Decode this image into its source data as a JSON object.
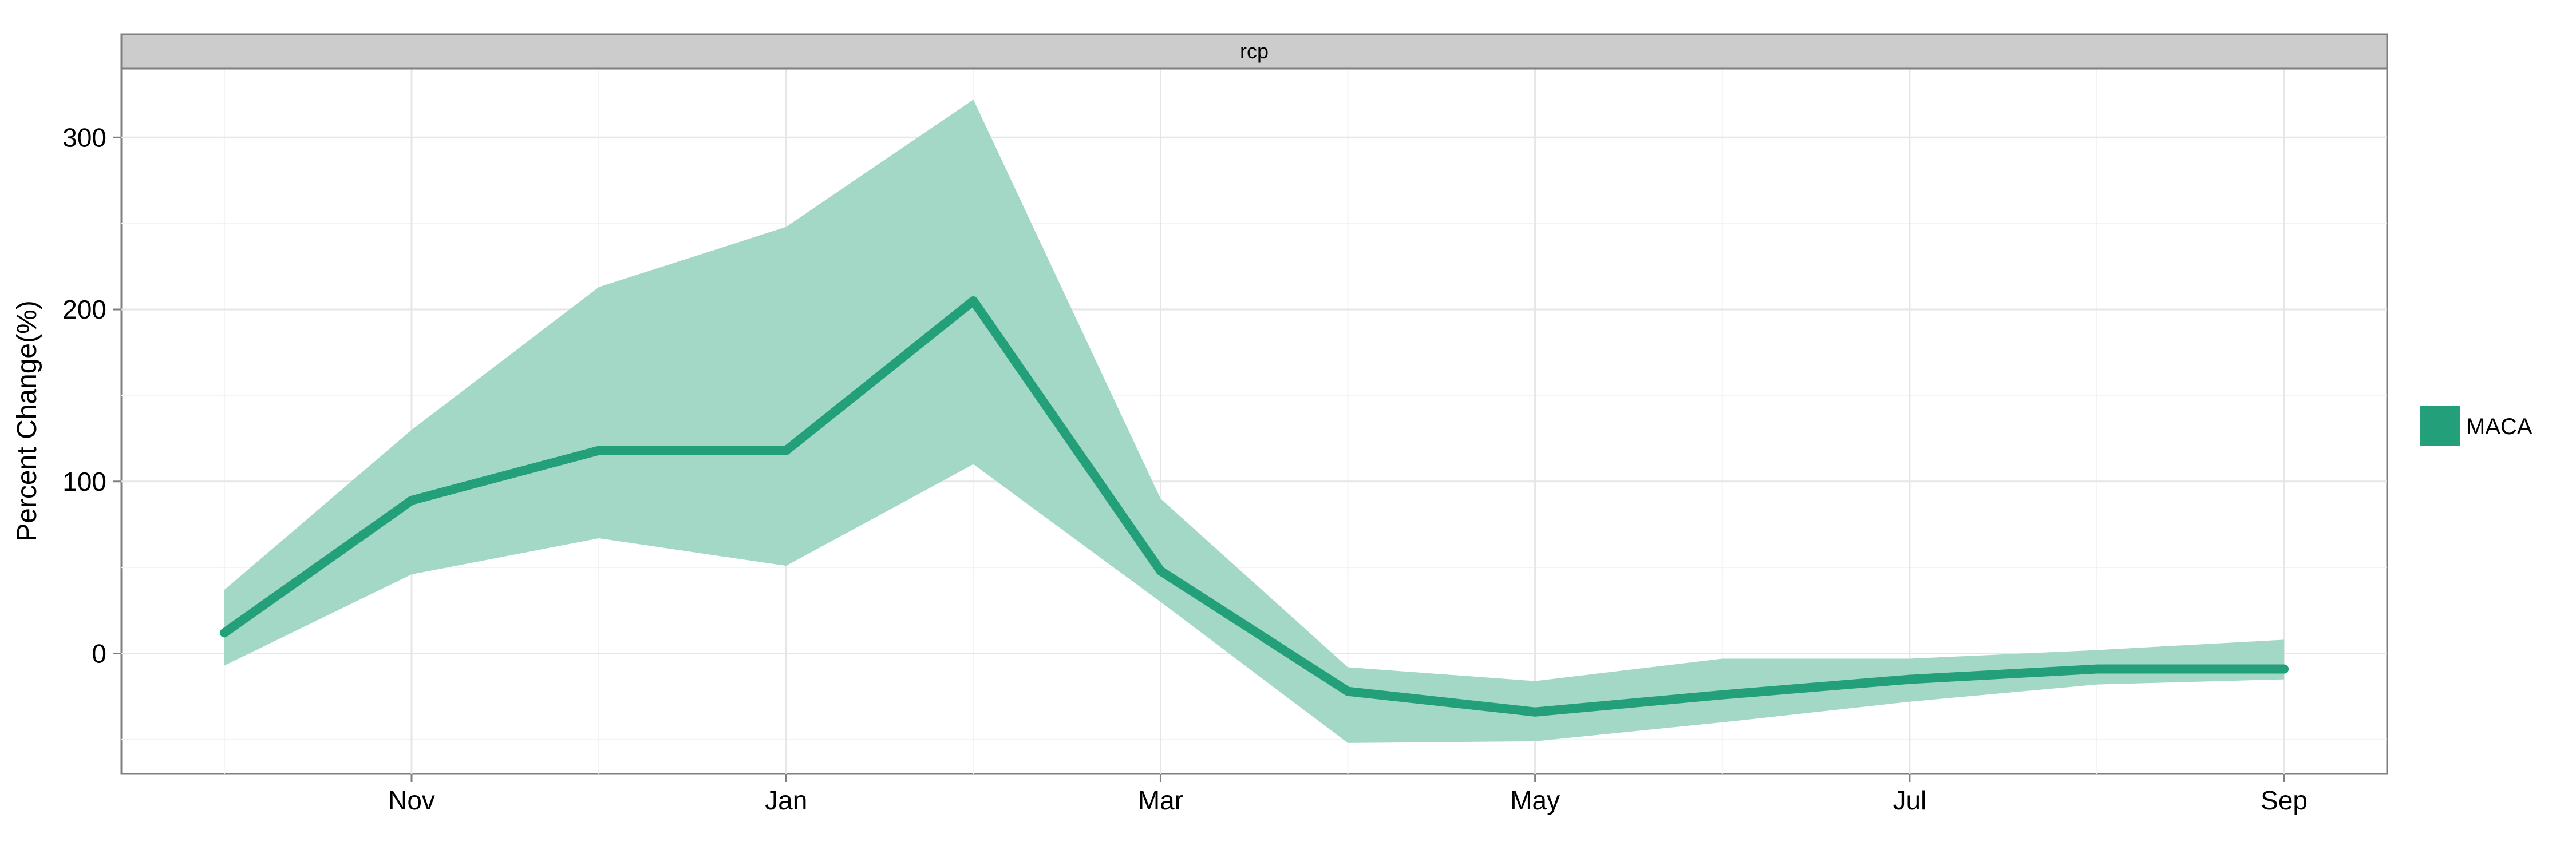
{
  "chart_data": {
    "type": "area",
    "panel_label": "rcp",
    "ylabel": "Percent Change(%)",
    "xlabel": "",
    "ylim": [
      -70,
      340
    ],
    "y_ticks": [
      0,
      100,
      200,
      300
    ],
    "x_tick_labels": [
      "Nov",
      "Jan",
      "Mar",
      "May",
      "Jul",
      "Sep"
    ],
    "x_tick_positions": [
      2,
      4,
      6,
      8,
      10,
      12
    ],
    "xlim": [
      0.45,
      12.55
    ],
    "grid": true,
    "legend_position": "right",
    "series": [
      {
        "name": "MACA",
        "color": "#23a07a",
        "ribbon_color": "#a3d8c6",
        "x": [
          1,
          2,
          3,
          4,
          5,
          6,
          7,
          8,
          9,
          10,
          11,
          12
        ],
        "mean": [
          12,
          89,
          118,
          118,
          205,
          48,
          -22,
          -34,
          -24,
          -15,
          -9,
          -9
        ],
        "upper": [
          37,
          130,
          213,
          248,
          322,
          90,
          -8,
          -16,
          -3,
          -3,
          2,
          8
        ],
        "lower": [
          -7,
          46,
          67,
          51,
          110,
          30,
          -52,
          -51,
          -40,
          -28,
          -18,
          -15
        ]
      }
    ]
  }
}
